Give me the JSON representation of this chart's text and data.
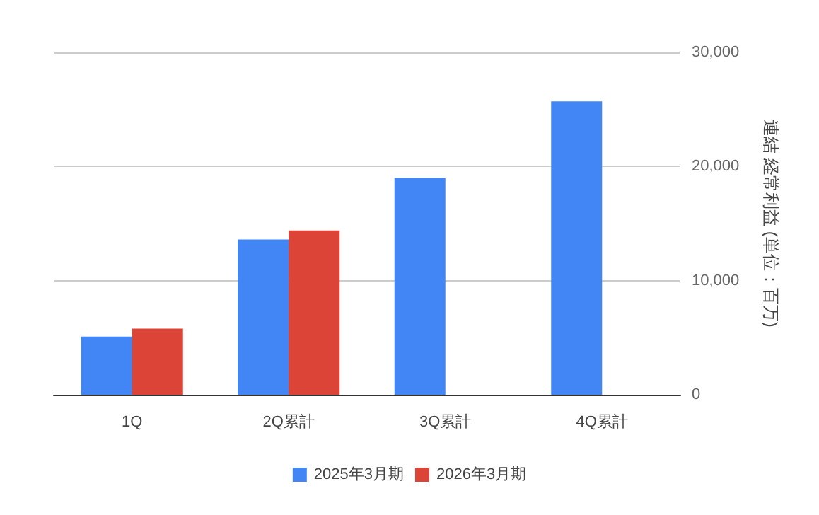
{
  "chart_data": {
    "type": "bar",
    "ylabel": "連結 経常利益 (単位：百万)",
    "categories": [
      "1Q",
      "2Q累計",
      "3Q累計",
      "4Q累計"
    ],
    "series": [
      {
        "name": "2025年3月期",
        "color": "#4285f4",
        "values": [
          5100,
          13600,
          19000,
          25700
        ]
      },
      {
        "name": "2026年3月期",
        "color": "#db4437",
        "values": [
          5800,
          14400,
          null,
          null
        ]
      }
    ],
    "ylim": [
      0,
      30000
    ],
    "yticks": [
      0,
      {
        "value": 10000,
        "label": "10,000"
      },
      {
        "value": 20000,
        "label": "20,000"
      },
      {
        "value": 30000,
        "label": "30,000"
      }
    ],
    "grid": "y",
    "legend": "bottom"
  }
}
